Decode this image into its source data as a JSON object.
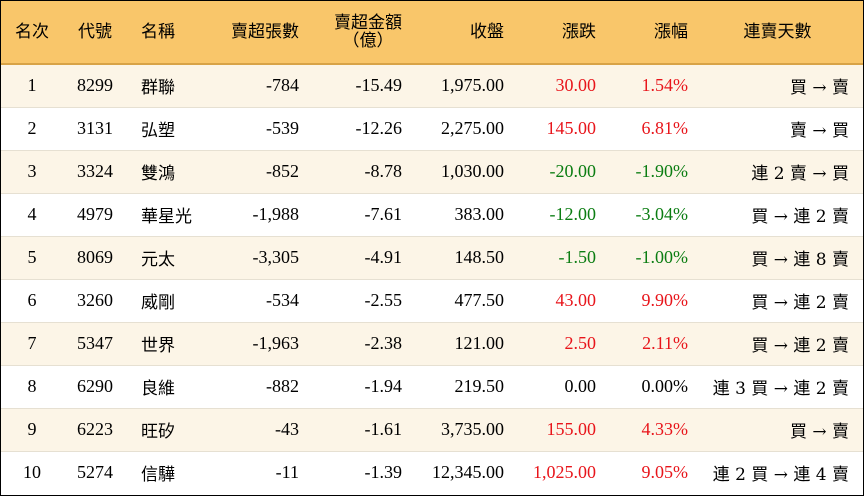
{
  "headers": {
    "rank": "名次",
    "code": "代號",
    "name": "名稱",
    "sell_shares": "賣超張數",
    "sell_amount_line1": "賣超金額",
    "sell_amount_line2": "（億）",
    "close": "收盤",
    "change": "漲跌",
    "pct": "漲幅",
    "days": "連賣天數"
  },
  "colors": {
    "header_bg": "#f9c66a",
    "row_alt_bg": "#fcf5e7",
    "up": "#e8151b",
    "down": "#0b7d12"
  },
  "rows": [
    {
      "rank": "1",
      "code": "8299",
      "name": "群聯",
      "sell_shares": "-784",
      "sell_amount": "-15.49",
      "close": "1,975.00",
      "change": "30.00",
      "pct": "1.54%",
      "trend": "up",
      "days": "買 → 賣"
    },
    {
      "rank": "2",
      "code": "3131",
      "name": "弘塑",
      "sell_shares": "-539",
      "sell_amount": "-12.26",
      "close": "2,275.00",
      "change": "145.00",
      "pct": "6.81%",
      "trend": "up",
      "days": "賣 → 買"
    },
    {
      "rank": "3",
      "code": "3324",
      "name": "雙鴻",
      "sell_shares": "-852",
      "sell_amount": "-8.78",
      "close": "1,030.00",
      "change": "-20.00",
      "pct": "-1.90%",
      "trend": "down",
      "days": "連 2 賣 → 買"
    },
    {
      "rank": "4",
      "code": "4979",
      "name": "華星光",
      "sell_shares": "-1,988",
      "sell_amount": "-7.61",
      "close": "383.00",
      "change": "-12.00",
      "pct": "-3.04%",
      "trend": "down",
      "days": "買 → 連 2 賣"
    },
    {
      "rank": "5",
      "code": "8069",
      "name": "元太",
      "sell_shares": "-3,305",
      "sell_amount": "-4.91",
      "close": "148.50",
      "change": "-1.50",
      "pct": "-1.00%",
      "trend": "down",
      "days": "買 → 連 8 賣"
    },
    {
      "rank": "6",
      "code": "3260",
      "name": "威剛",
      "sell_shares": "-534",
      "sell_amount": "-2.55",
      "close": "477.50",
      "change": "43.00",
      "pct": "9.90%",
      "trend": "up",
      "days": "買 → 連 2 賣"
    },
    {
      "rank": "7",
      "code": "5347",
      "name": "世界",
      "sell_shares": "-1,963",
      "sell_amount": "-2.38",
      "close": "121.00",
      "change": "2.50",
      "pct": "2.11%",
      "trend": "up",
      "days": "買 → 連 2 賣"
    },
    {
      "rank": "8",
      "code": "6290",
      "name": "良維",
      "sell_shares": "-882",
      "sell_amount": "-1.94",
      "close": "219.50",
      "change": "0.00",
      "pct": "0.00%",
      "trend": "flat",
      "days": "連 3 買 → 連 2 賣"
    },
    {
      "rank": "9",
      "code": "6223",
      "name": "旺矽",
      "sell_shares": "-43",
      "sell_amount": "-1.61",
      "close": "3,735.00",
      "change": "155.00",
      "pct": "4.33%",
      "trend": "up",
      "days": "買 → 賣"
    },
    {
      "rank": "10",
      "code": "5274",
      "name": "信驊",
      "sell_shares": "-11",
      "sell_amount": "-1.39",
      "close": "12,345.00",
      "change": "1,025.00",
      "pct": "9.05%",
      "trend": "up",
      "days": "連 2 買 → 連 4 賣"
    }
  ]
}
